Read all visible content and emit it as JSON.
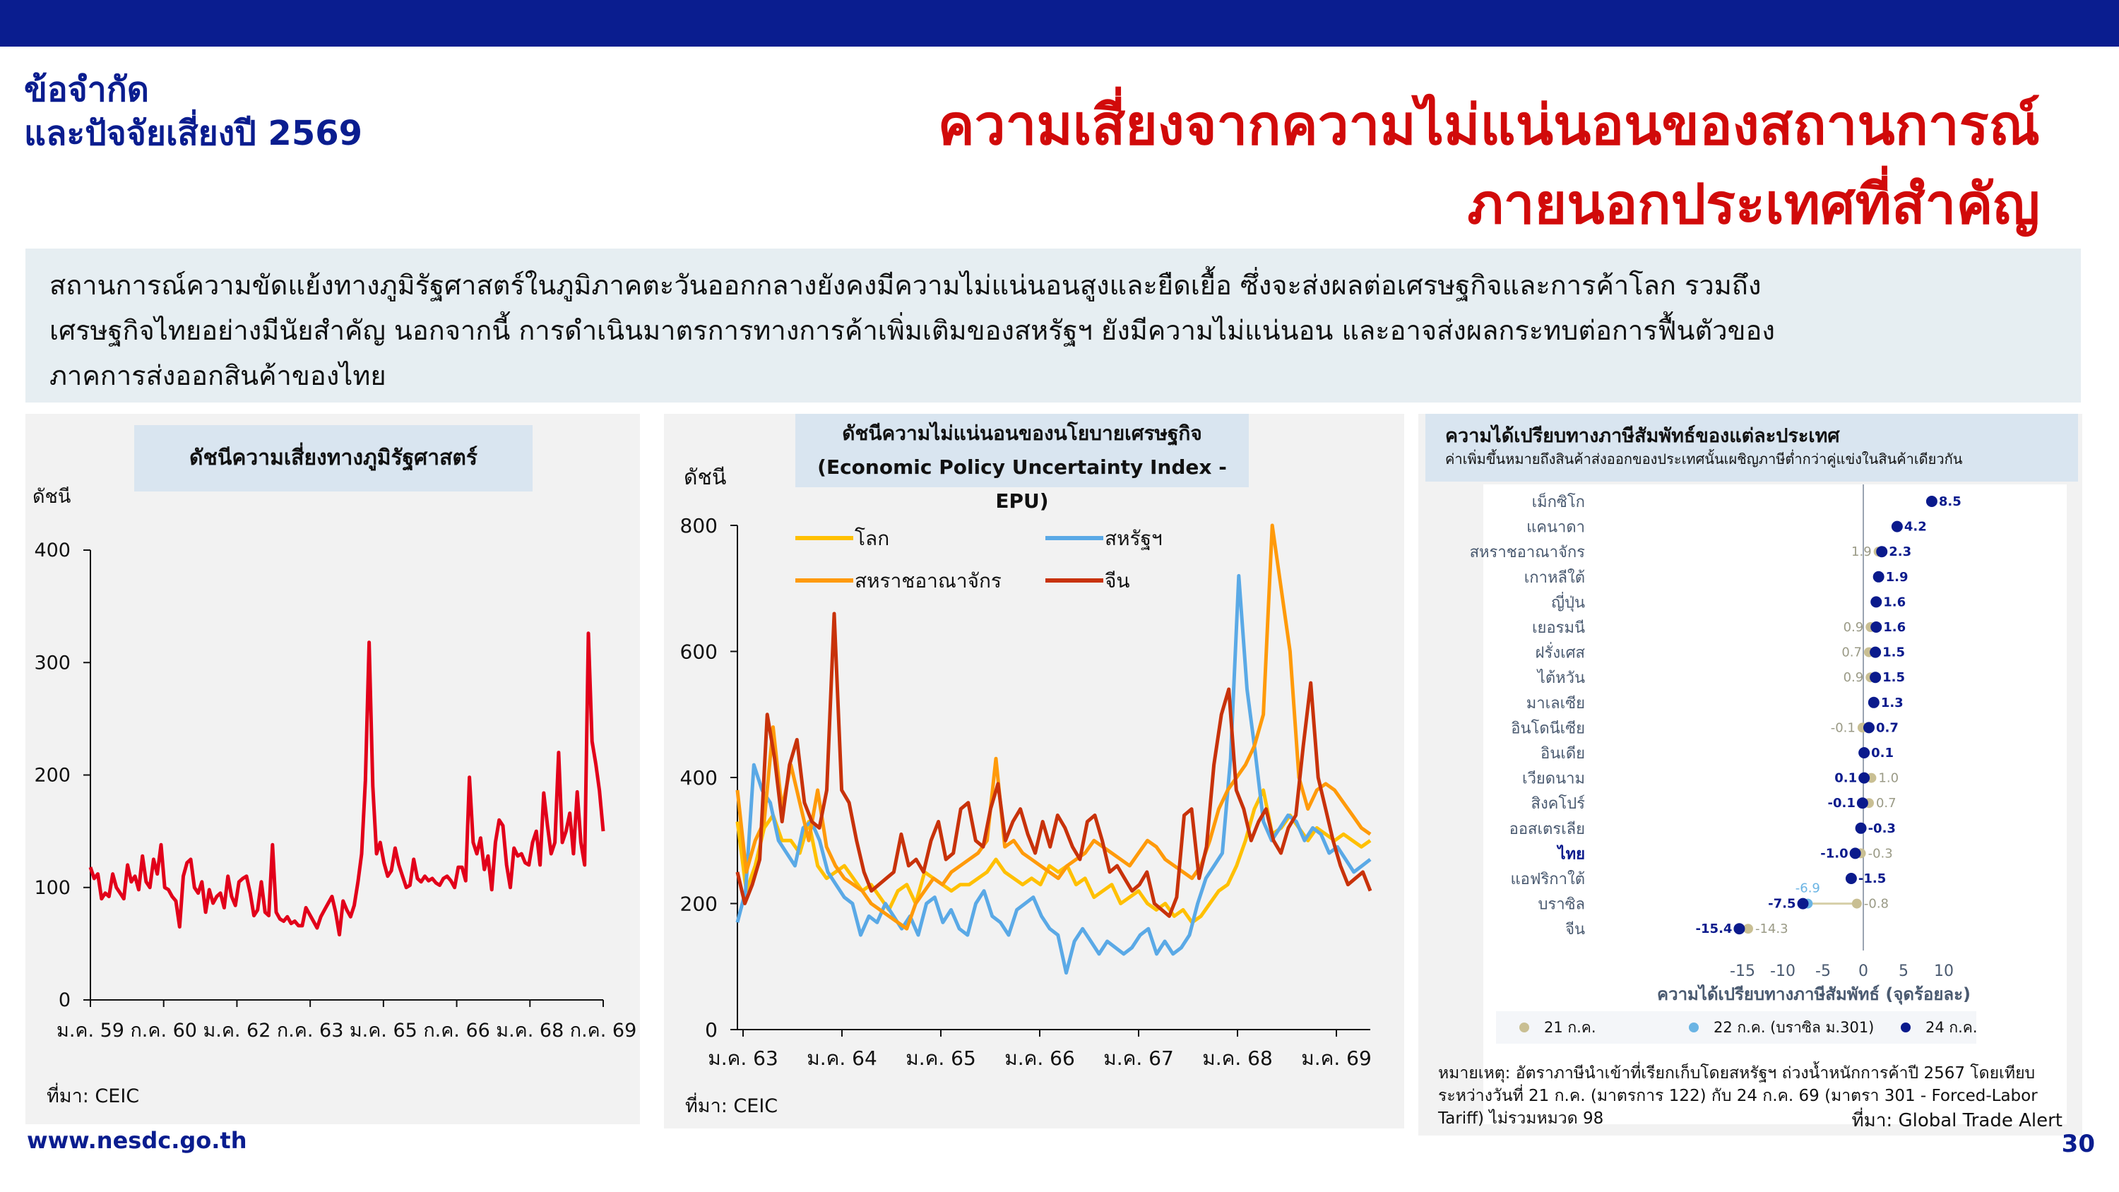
{
  "header": {
    "section_title_line1": "ข้อจำกัด",
    "section_title_line2": "และปัจจัยเสี่ยงปี 2569",
    "main_title_line1": "ความเสี่ยงจากความไม่แน่นอนของสถานการณ์",
    "main_title_line2": "ภายนอกประเทศที่สำคัญ"
  },
  "summary": {
    "line1": "สถานการณ์ความขัดแย้งทางภูมิรัฐศาสตร์ในภูมิภาคตะวันออกกลางยังคงมีความไม่แน่นอนสูงและยืดเยื้อ ซึ่งจะส่งผลต่อเศรษฐกิจและการค้าโลก รวมถึง",
    "line2": "เศรษฐกิจไทยอย่างมีนัยสำคัญ นอกจากนี้ การดำเนินมาตรการทางการค้าเพิ่มเติมของสหรัฐฯ ยังมีความไม่แน่นอน และอาจส่งผลกระทบต่อการฟื้นตัวของ",
    "line3": "ภาคการส่งออกสินค้าของไทย"
  },
  "colors": {
    "navy": "#0a1d8f",
    "title_red": "#d10a0a",
    "gpr_red": "#e2001a",
    "world": "#ffc000",
    "us": "#5aa9e6",
    "uk": "#ff9a0a",
    "china": "#c8320a",
    "dot21": "#c9bf93",
    "dot22": "#6ab4e4",
    "dot24": "#0a1a8c"
  },
  "chart_data": [
    {
      "type": "line",
      "title": "ดัชนีความเสี่ยงทางภูมิรัฐศาสตร์",
      "ylabel": "ดัชนี",
      "ylim": [
        0,
        400
      ],
      "yticks": [
        "0",
        "100",
        "200",
        "300",
        "400"
      ],
      "x_tick_labels": [
        "ม.ค. 59",
        "ก.ค. 60",
        "ม.ค. 62",
        "ก.ค. 63",
        "ม.ค. 65",
        "ก.ค. 66",
        "ม.ค. 68",
        "ก.ค. 69"
      ],
      "series": [
        {
          "values": [
            118,
            108,
            112,
            90,
            95,
            92,
            112,
            100,
            95,
            90,
            120,
            105,
            110,
            98,
            128,
            105,
            100,
            125,
            112,
            138,
            100,
            98,
            92,
            88,
            65,
            110,
            122,
            125,
            100,
            95,
            105,
            78,
            98,
            86,
            92,
            95,
            82,
            110,
            92,
            84,
            105,
            108,
            110,
            95,
            75,
            80,
            105,
            78,
            75,
            138,
            78,
            72,
            70,
            74,
            68,
            70,
            66,
            66,
            82,
            76,
            70,
            64,
            74,
            80,
            86,
            92,
            78,
            58,
            88,
            80,
            74,
            84,
            105,
            130,
            195,
            318,
            190,
            130,
            140,
            122,
            110,
            115,
            135,
            120,
            110,
            100,
            102,
            125,
            108,
            105,
            110,
            106,
            108,
            104,
            102,
            108,
            110,
            106,
            100,
            118,
            118,
            106,
            198,
            140,
            130,
            144,
            116,
            128,
            98,
            140,
            160,
            155,
            120,
            100,
            135,
            128,
            130,
            122,
            120,
            140,
            150,
            120,
            184,
            155,
            130,
            140,
            220,
            140,
            150,
            166,
            130,
            185,
            140,
            120,
            326,
            230,
            210,
            186,
            150
          ]
        }
      ],
      "source": "ที่มา: CEIC"
    },
    {
      "type": "line",
      "title_line1": "ดัชนีความไม่แน่นอนของนโยบายเศรษฐกิจ",
      "title_line2": "(Economic Policy Uncertainty Index - EPU)",
      "ylabel": "ดัชนี",
      "ylim": [
        0,
        800
      ],
      "yticks": [
        "0",
        "200",
        "400",
        "600",
        "800"
      ],
      "x_tick_labels": [
        "ม.ค. 63",
        "ม.ค. 64",
        "ม.ค. 65",
        "ม.ค. 66",
        "ม.ค. 67",
        "ม.ค. 68",
        "ม.ค. 69"
      ],
      "series": [
        {
          "name": "โลก",
          "values": [
            330,
            220,
            260,
            320,
            340,
            300,
            300,
            280,
            330,
            260,
            240,
            250,
            260,
            240,
            220,
            230,
            210,
            190,
            220,
            230,
            200,
            250,
            240,
            230,
            220,
            230,
            230,
            240,
            250,
            270,
            250,
            240,
            230,
            240,
            230,
            260,
            250,
            260,
            230,
            240,
            210,
            220,
            230,
            200,
            210,
            220,
            200,
            190,
            200,
            180,
            190,
            170,
            180,
            200,
            220,
            230,
            260,
            300,
            350,
            380,
            310,
            320,
            340,
            320,
            300,
            320,
            310,
            300,
            310,
            300,
            290,
            300
          ]
        },
        {
          "name": "สหรัฐฯ",
          "values": [
            170,
            220,
            420,
            380,
            360,
            300,
            280,
            260,
            320,
            330,
            300,
            250,
            230,
            210,
            200,
            150,
            180,
            170,
            200,
            180,
            160,
            180,
            150,
            200,
            210,
            170,
            190,
            160,
            150,
            200,
            220,
            180,
            170,
            150,
            190,
            200,
            210,
            180,
            160,
            150,
            90,
            140,
            160,
            140,
            120,
            140,
            130,
            120,
            130,
            150,
            160,
            120,
            140,
            120,
            130,
            150,
            200,
            240,
            260,
            280,
            430,
            720,
            540,
            440,
            330,
            300,
            320,
            340,
            330,
            300,
            320,
            310,
            280,
            290,
            270,
            250,
            260,
            270
          ]
        },
        {
          "name": "สหราชอาณาจักร",
          "values": [
            380,
            250,
            300,
            330,
            480,
            350,
            420,
            360,
            300,
            380,
            290,
            260,
            240,
            230,
            220,
            200,
            190,
            180,
            170,
            160,
            200,
            220,
            240,
            230,
            250,
            260,
            270,
            280,
            300,
            430,
            290,
            300,
            280,
            270,
            260,
            250,
            240,
            260,
            270,
            280,
            300,
            290,
            280,
            270,
            260,
            280,
            300,
            290,
            270,
            260,
            250,
            240,
            260,
            300,
            350,
            380,
            400,
            420,
            450,
            500,
            820,
            700,
            600,
            400,
            350,
            380,
            390,
            380,
            360,
            340,
            320,
            310
          ]
        },
        {
          "name": "จีน",
          "values": [
            250,
            200,
            230,
            270,
            500,
            430,
            330,
            420,
            460,
            360,
            330,
            320,
            380,
            660,
            380,
            360,
            300,
            250,
            220,
            230,
            240,
            250,
            310,
            260,
            270,
            250,
            300,
            330,
            270,
            280,
            350,
            360,
            300,
            290,
            350,
            390,
            300,
            330,
            350,
            310,
            280,
            330,
            290,
            340,
            320,
            290,
            270,
            330,
            340,
            300,
            250,
            260,
            240,
            220,
            230,
            250,
            200,
            190,
            180,
            210,
            340,
            350,
            240,
            290,
            420,
            500,
            540,
            380,
            350,
            300,
            330,
            350,
            300,
            280,
            320,
            340,
            450,
            550,
            400,
            350,
            300,
            260,
            230,
            240,
            250,
            220
          ]
        }
      ],
      "source": "ที่มา: CEIC"
    },
    {
      "type": "scatter",
      "title": "ความได้เปรียบทางภาษีสัมพัทธ์ของแต่ละประเทศ",
      "subtitle": "ค่าเพิ่มขึ้นหมายถึงสินค้าส่งออกของประเทศนั้นเผชิญภาษีต่ำกว่าคู่แข่งในสินค้าเดียวกัน",
      "xlabel": "ความได้เปรียบทางภาษีสัมพัทธ์ (จุดร้อยละ)",
      "xlim": [
        -17,
        12
      ],
      "xticks": [
        "-15",
        "-10",
        "-5",
        "0",
        "5",
        "10"
      ],
      "legend_position": "bottom",
      "legend": [
        "21 ก.ค.",
        "22 ก.ค. (บราซิล ม.301)",
        "24 ก.ค."
      ],
      "categories": [
        "เม็กซิโก",
        "แคนาดา",
        "สหราชอาณาจักร",
        "เกาหลีใต้",
        "ญี่ปุ่น",
        "เยอรมนี",
        "ฝรั่งเศส",
        "ไต้หวัน",
        "มาเลเซีย",
        "อินโดนีเซีย",
        "อินเดีย",
        "เวียดนาม",
        "สิงคโปร์",
        "ออสเตรเลีย",
        "ไทย",
        "แอฟริกาใต้",
        "บราซิล",
        "จีน"
      ],
      "jul21": [
        8.5,
        4.2,
        1.9,
        1.9,
        1.6,
        0.9,
        0.7,
        0.9,
        1.3,
        -0.1,
        0.1,
        1.0,
        0.7,
        -0.3,
        -0.3,
        -1.5,
        -0.8,
        -14.3
      ],
      "jul21_labels": [
        "",
        "",
        "1.9",
        "",
        "",
        "0.9",
        "0.7",
        "0.9",
        "",
        "-0.1",
        "",
        "1.0",
        "0.7",
        "",
        "-0.3",
        "",
        "-0.8",
        "-14.3"
      ],
      "jul22_brazil": -6.9,
      "jul22_label": "-6.9",
      "jul24": [
        8.5,
        4.2,
        2.3,
        1.9,
        1.6,
        1.6,
        1.5,
        1.5,
        1.3,
        0.7,
        0.1,
        0.1,
        -0.1,
        -0.3,
        -1.0,
        -1.5,
        -7.5,
        -15.4
      ],
      "jul24_labels": [
        "8.5",
        "4.2",
        "2.3",
        "1.9",
        "1.6",
        "1.6",
        "1.5",
        "1.5",
        "1.3",
        "0.7",
        "0.1",
        "0.1",
        "-0.1",
        "-0.3",
        "-1.0",
        "-1.5",
        "-7.5",
        "-15.4"
      ],
      "note_line1": "หมายเหตุ: อัตราภาษีนำเข้าที่เรียกเก็บโดยสหรัฐฯ ถ่วงน้ำหนักการค้าปี 2567 โดยเทียบ",
      "note_line2": "ระหว่างวันที่ 21 ก.ค. (มาตรการ 122) กับ 24 ก.ค. 69 (มาตรา 301 - Forced-Labor",
      "note_line3": "Tariff) ไม่รวมหมวด 98",
      "source": "ที่มา: Global Trade Alert"
    }
  ],
  "footer": {
    "url": "www.nesdc.go.th",
    "page": "30"
  }
}
